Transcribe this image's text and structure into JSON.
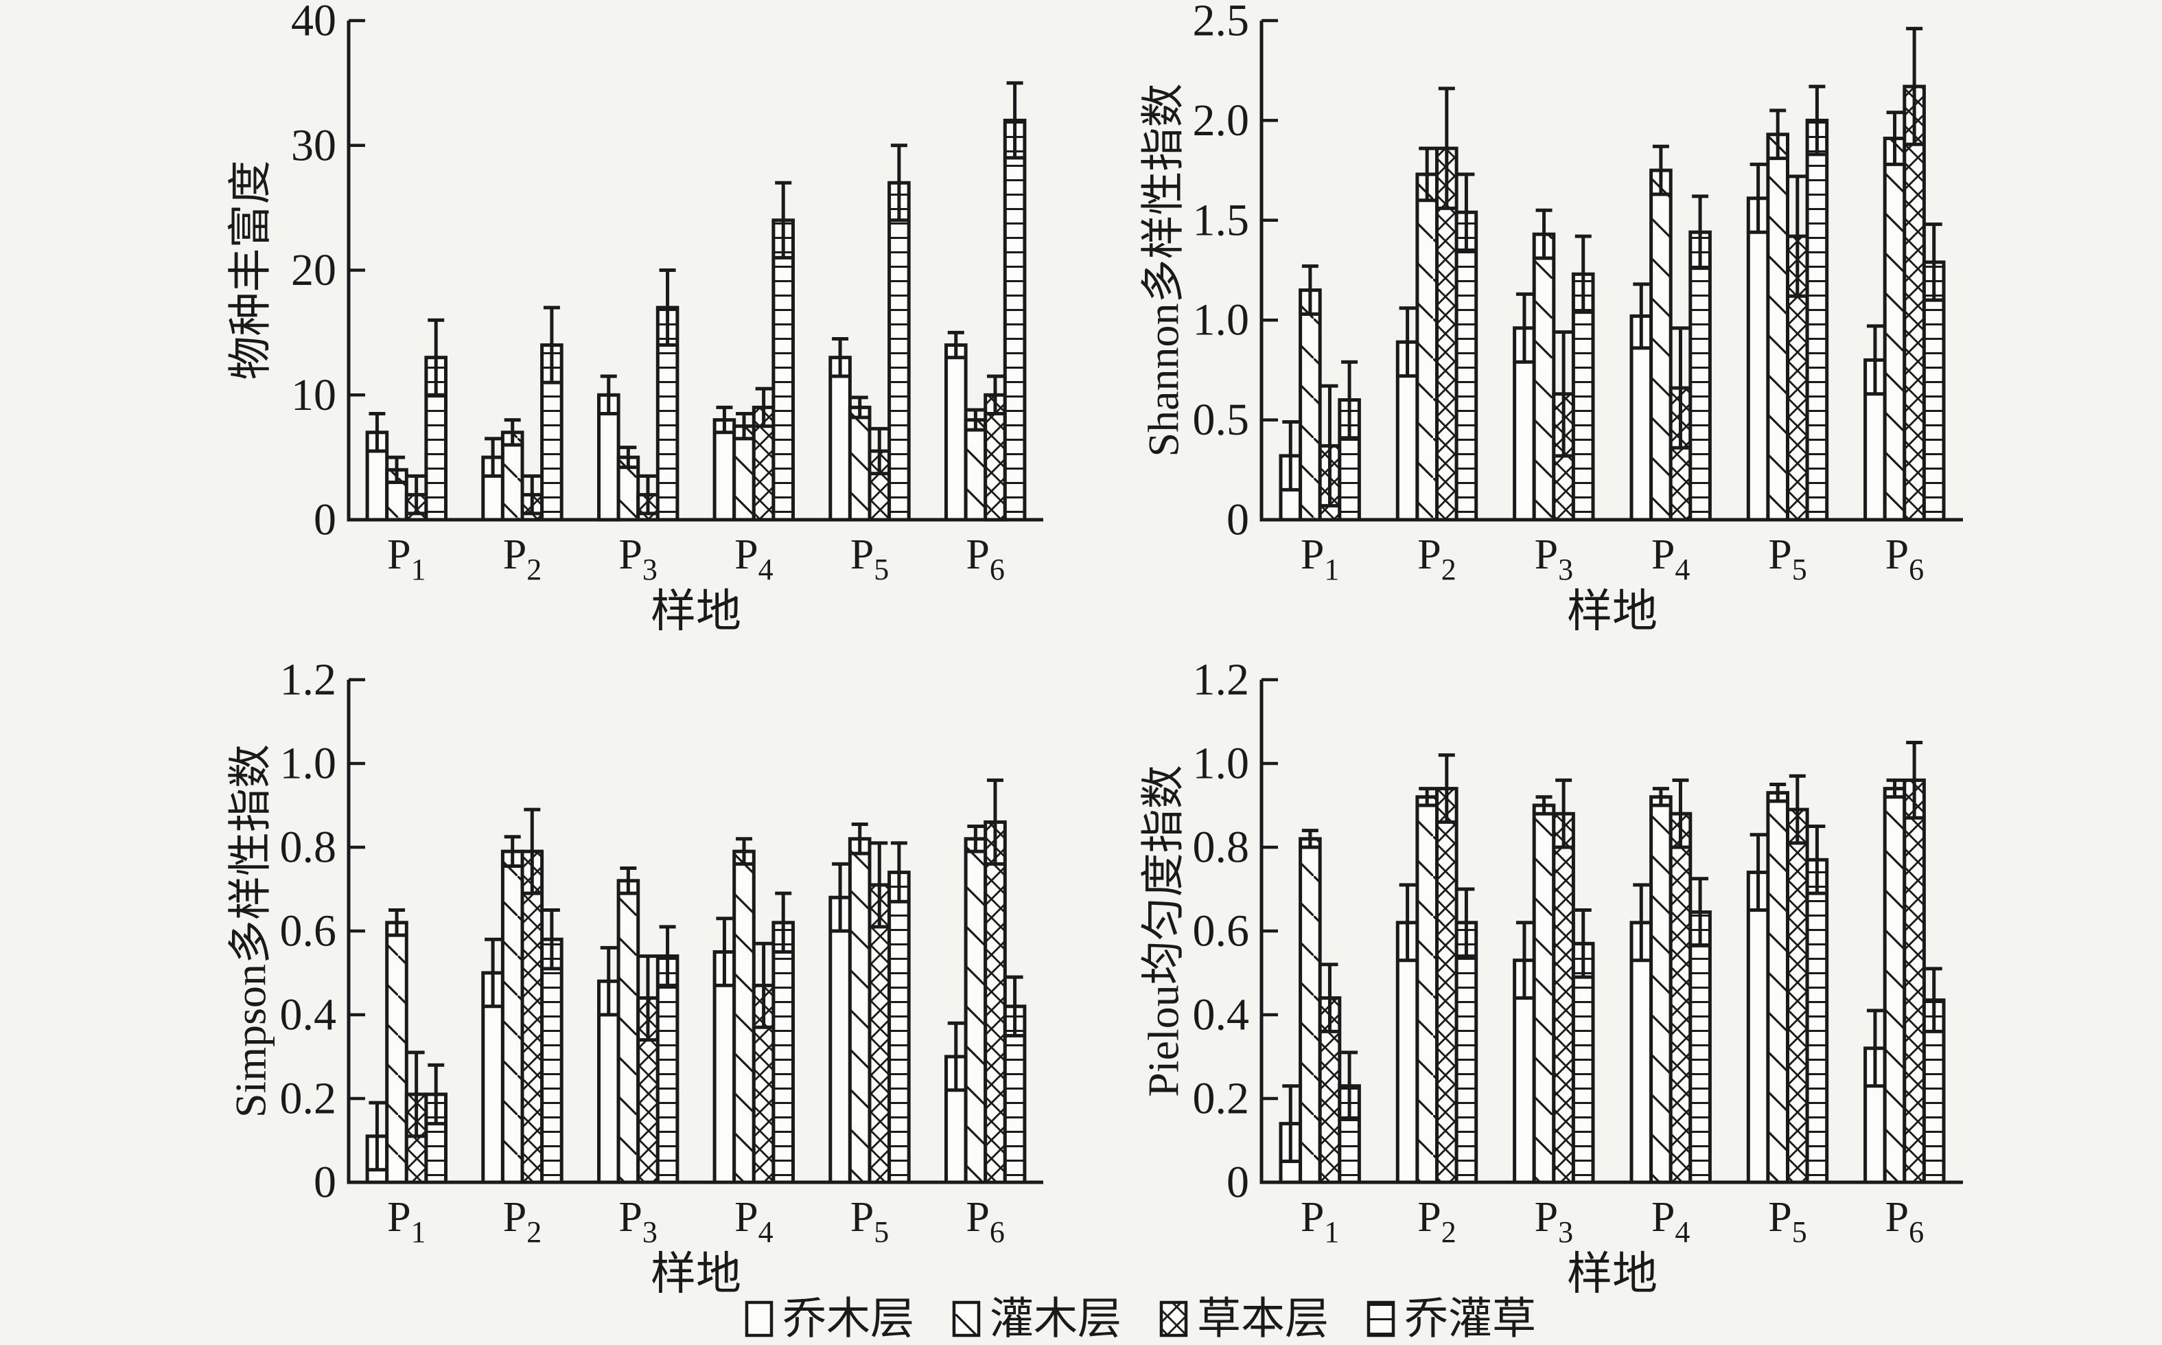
{
  "figure": {
    "background": "#f4f4f1",
    "ink": "#1a1a1a",
    "bar_fill": "#fcfcfa"
  },
  "legend": {
    "position": "bottom-center",
    "items": [
      {
        "key": "tree-layer",
        "label": "乔木层",
        "pattern": "plain"
      },
      {
        "key": "shrub-layer",
        "label": "灌木层",
        "pattern": "diagonal"
      },
      {
        "key": "herb-layer",
        "label": "草本层",
        "pattern": "crosshatch"
      },
      {
        "key": "tree-shrub-herb",
        "label": "乔灌草",
        "pattern": "hlines"
      }
    ]
  },
  "chart_data": [
    {
      "id": "species-richness",
      "type": "bar",
      "title": "",
      "xlabel": "样地",
      "ylabel": "物种丰富度",
      "categories": [
        "P1",
        "P2",
        "P3",
        "P4",
        "P5",
        "P6"
      ],
      "ylim": [
        0,
        40
      ],
      "grid": false,
      "yticks": [
        0,
        10,
        20,
        30,
        40
      ],
      "ytick_labels": [
        "0",
        "10",
        "20",
        "30",
        "40"
      ],
      "series": [
        {
          "name": "乔木层",
          "key": "tree-layer",
          "pattern": "plain",
          "values": [
            7,
            5,
            10,
            8,
            13,
            14
          ],
          "errors": [
            1.5,
            1.5,
            1.5,
            1,
            1.5,
            1
          ]
        },
        {
          "name": "灌木层",
          "key": "shrub-layer",
          "pattern": "diagonal",
          "values": [
            4,
            7,
            5,
            7.5,
            9,
            8
          ],
          "errors": [
            1,
            1,
            0.8,
            1,
            0.8,
            0.8
          ]
        },
        {
          "name": "草本层",
          "key": "herb-layer",
          "pattern": "crosshatch",
          "values": [
            2,
            2,
            2,
            9,
            5.5,
            10
          ],
          "errors": [
            1.5,
            1.5,
            1.5,
            1.5,
            1.8,
            1.5
          ]
        },
        {
          "name": "乔灌草",
          "key": "tree-shrub-herb",
          "pattern": "hlines",
          "values": [
            13,
            14,
            17,
            24,
            27,
            32
          ],
          "errors": [
            3,
            3,
            3,
            3,
            3,
            3
          ]
        }
      ]
    },
    {
      "id": "shannon-diversity",
      "type": "bar",
      "title": "",
      "xlabel": "样地",
      "ylabel": "Shannon多样性指数",
      "categories": [
        "P1",
        "P2",
        "P3",
        "P4",
        "P5",
        "P6"
      ],
      "ylim": [
        0,
        2.5
      ],
      "grid": false,
      "yticks": [
        0,
        0.5,
        1.0,
        1.5,
        2.0,
        2.5
      ],
      "ytick_labels": [
        "0",
        "0.5",
        "1.0",
        "1.5",
        "2.0",
        "2.5"
      ],
      "series": [
        {
          "name": "乔木层",
          "key": "tree-layer",
          "pattern": "plain",
          "values": [
            0.32,
            0.89,
            0.96,
            1.02,
            1.61,
            0.8
          ],
          "errors": [
            0.17,
            0.17,
            0.17,
            0.16,
            0.17,
            0.17
          ]
        },
        {
          "name": "灌木层",
          "key": "shrub-layer",
          "pattern": "diagonal",
          "values": [
            1.15,
            1.73,
            1.43,
            1.75,
            1.93,
            1.91
          ],
          "errors": [
            0.12,
            0.13,
            0.12,
            0.12,
            0.12,
            0.13
          ]
        },
        {
          "name": "草本层",
          "key": "herb-layer",
          "pattern": "crosshatch",
          "values": [
            0.37,
            1.86,
            0.63,
            0.66,
            1.42,
            2.17
          ],
          "errors": [
            0.3,
            0.3,
            0.31,
            0.3,
            0.3,
            0.29
          ]
        },
        {
          "name": "乔灌草",
          "key": "tree-shrub-herb",
          "pattern": "hlines",
          "values": [
            0.6,
            1.54,
            1.23,
            1.44,
            2.0,
            1.29
          ],
          "errors": [
            0.19,
            0.19,
            0.19,
            0.18,
            0.17,
            0.19
          ]
        }
      ]
    },
    {
      "id": "simpson-diversity",
      "type": "bar",
      "title": "",
      "xlabel": "样地",
      "ylabel": "Simpson多样性指数",
      "categories": [
        "P1",
        "P2",
        "P3",
        "P4",
        "P5",
        "P6"
      ],
      "ylim": [
        0,
        1.2
      ],
      "grid": false,
      "yticks": [
        0,
        0.2,
        0.4,
        0.6,
        0.8,
        1.0,
        1.2
      ],
      "ytick_labels": [
        "0",
        "0.2",
        "0.4",
        "0.6",
        "0.8",
        "1.0",
        "1.2"
      ],
      "series": [
        {
          "name": "乔木层",
          "key": "tree-layer",
          "pattern": "plain",
          "values": [
            0.11,
            0.5,
            0.48,
            0.55,
            0.68,
            0.3
          ],
          "errors": [
            0.08,
            0.08,
            0.08,
            0.08,
            0.08,
            0.08
          ]
        },
        {
          "name": "灌木层",
          "key": "shrub-layer",
          "pattern": "diagonal",
          "values": [
            0.62,
            0.79,
            0.72,
            0.79,
            0.82,
            0.82
          ],
          "errors": [
            0.03,
            0.035,
            0.03,
            0.03,
            0.035,
            0.03
          ]
        },
        {
          "name": "草本层",
          "key": "herb-layer",
          "pattern": "crosshatch",
          "values": [
            0.21,
            0.79,
            0.44,
            0.47,
            0.71,
            0.86
          ],
          "errors": [
            0.1,
            0.1,
            0.1,
            0.1,
            0.1,
            0.1
          ]
        },
        {
          "name": "乔灌草",
          "key": "tree-shrub-herb",
          "pattern": "hlines",
          "values": [
            0.21,
            0.58,
            0.54,
            0.62,
            0.74,
            0.42
          ],
          "errors": [
            0.07,
            0.07,
            0.07,
            0.07,
            0.07,
            0.07
          ]
        }
      ]
    },
    {
      "id": "pielou-evenness",
      "type": "bar",
      "title": "",
      "xlabel": "样地",
      "ylabel": "Pielou均匀度指数",
      "categories": [
        "P1",
        "P2",
        "P3",
        "P4",
        "P5",
        "P6"
      ],
      "ylim": [
        0,
        1.2
      ],
      "grid": false,
      "yticks": [
        0,
        0.2,
        0.4,
        0.6,
        0.8,
        1.0,
        1.2
      ],
      "ytick_labels": [
        "0",
        "0.2",
        "0.4",
        "0.6",
        "0.8",
        "1.0",
        "1.2"
      ],
      "series": [
        {
          "name": "乔木层",
          "key": "tree-layer",
          "pattern": "plain",
          "values": [
            0.14,
            0.62,
            0.53,
            0.62,
            0.74,
            0.32
          ],
          "errors": [
            0.09,
            0.09,
            0.09,
            0.09,
            0.09,
            0.09
          ]
        },
        {
          "name": "灌木层",
          "key": "shrub-layer",
          "pattern": "diagonal",
          "values": [
            0.82,
            0.92,
            0.9,
            0.92,
            0.93,
            0.94
          ],
          "errors": [
            0.02,
            0.02,
            0.02,
            0.02,
            0.02,
            0.02
          ]
        },
        {
          "name": "草本层",
          "key": "herb-layer",
          "pattern": "crosshatch",
          "values": [
            0.44,
            0.94,
            0.88,
            0.88,
            0.89,
            0.96
          ],
          "errors": [
            0.08,
            0.08,
            0.08,
            0.08,
            0.08,
            0.09
          ]
        },
        {
          "name": "乔灌草",
          "key": "tree-shrub-herb",
          "pattern": "hlines",
          "values": [
            0.23,
            0.62,
            0.57,
            0.645,
            0.77,
            0.435
          ],
          "errors": [
            0.08,
            0.08,
            0.08,
            0.08,
            0.08,
            0.075
          ]
        }
      ]
    }
  ]
}
